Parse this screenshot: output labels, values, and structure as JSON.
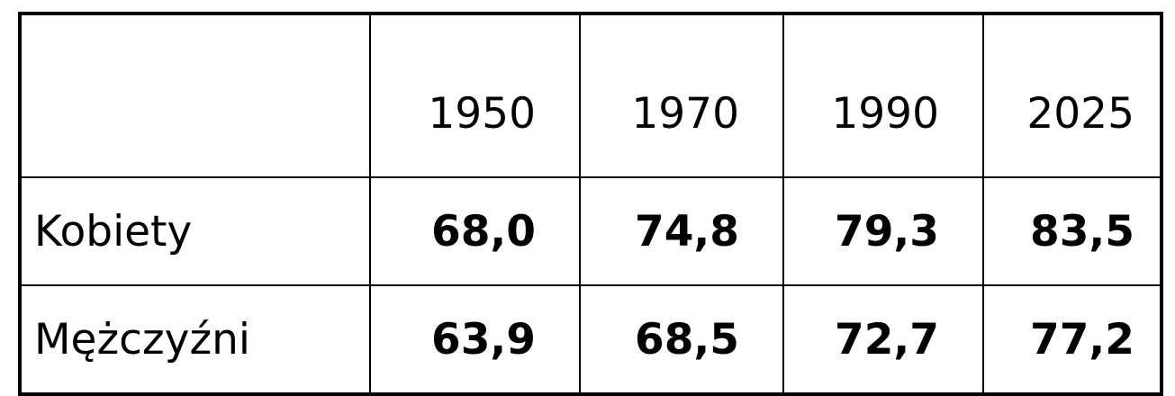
{
  "table": {
    "corner_label": "",
    "years": [
      "1950",
      "1970",
      "1990",
      "2025"
    ],
    "rows": [
      {
        "label": "Kobiety",
        "values": [
          "68,0",
          "74,8",
          "79,3",
          "83,5"
        ]
      },
      {
        "label": "Mężczyźni",
        "values": [
          "63,9",
          "68,5",
          "72,7",
          "77,2"
        ]
      }
    ]
  }
}
